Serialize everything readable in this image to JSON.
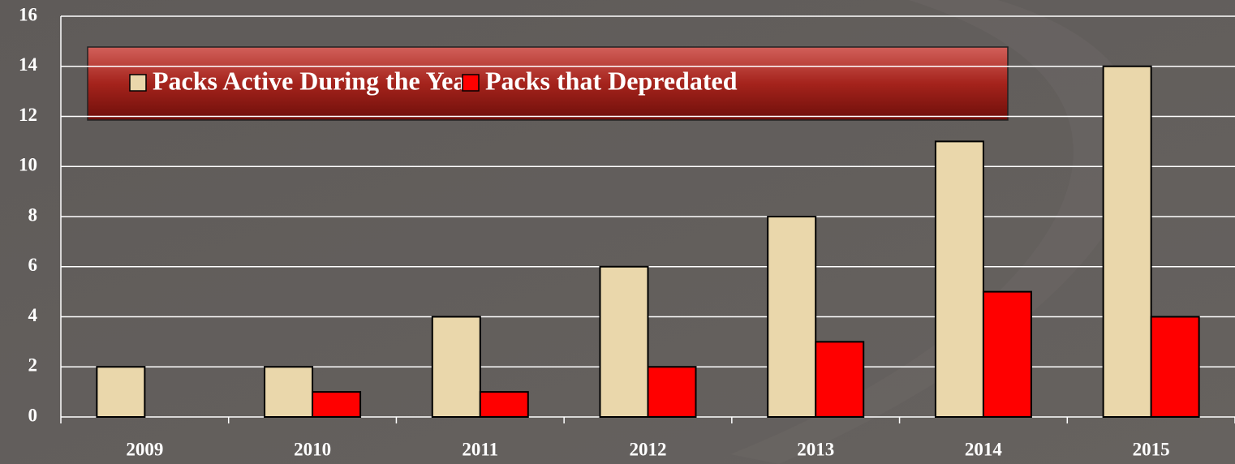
{
  "chart_data": {
    "type": "bar",
    "categories": [
      "2009",
      "2010",
      "2011",
      "2012",
      "2013",
      "2014",
      "2015"
    ],
    "series": [
      {
        "name": "Packs Active During the Year",
        "color": "#ead7ab",
        "values": [
          2,
          2,
          4,
          6,
          8,
          11,
          14
        ]
      },
      {
        "name": "Packs that Depredated",
        "color": "#ff0000",
        "values": [
          0,
          1,
          1,
          2,
          3,
          5,
          4
        ]
      }
    ],
    "ylim": [
      0,
      16
    ],
    "yticks": [
      0,
      2,
      4,
      6,
      8,
      10,
      12,
      14,
      16
    ],
    "grid": true,
    "legend": "top"
  }
}
